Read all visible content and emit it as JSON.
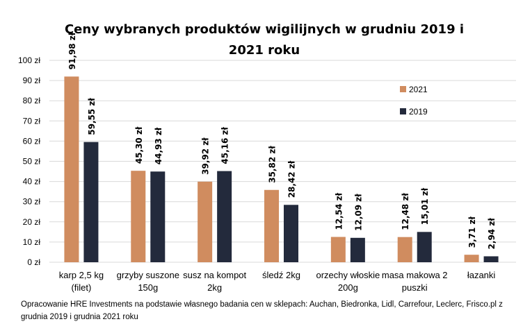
{
  "chart_data": {
    "type": "bar",
    "title_lines": [
      "Ceny wybranych produktów wigilijnych w grudniu 2019 i",
      "2021 roku"
    ],
    "categories": [
      [
        "karp 2,5 kg",
        "(filet)"
      ],
      [
        "grzyby suszone",
        "150g"
      ],
      [
        "susz na kompot",
        "2kg"
      ],
      [
        "śledź 2kg"
      ],
      [
        "orzechy włoskie",
        "200g"
      ],
      [
        "masa makowa 2",
        "puszki"
      ],
      [
        "łazanki"
      ]
    ],
    "series": [
      {
        "name": "2021",
        "color": "#D08C5F",
        "values": [
          91.98,
          45.3,
          39.92,
          35.82,
          12.54,
          12.48,
          3.71
        ],
        "labels": [
          "91,98 zł",
          "45,30 zł",
          "39,92 zł",
          "35,82 zł",
          "12,54 zł",
          "12,48 zł",
          "3,71 zł"
        ]
      },
      {
        "name": "2019",
        "color": "#232A3C",
        "values": [
          59.55,
          44.93,
          45.16,
          28.42,
          12.09,
          15.01,
          2.94
        ],
        "labels": [
          "59,55 zł",
          "44,93 zł",
          "45,16 zł",
          "28,42 zł",
          "12,09 zł",
          "15,01 zł",
          "2,94 zł"
        ]
      }
    ],
    "yticks": [
      "0 zł",
      "10 zł",
      "20 zł",
      "30 zł",
      "40 zł",
      "50 zł",
      "60 zł",
      "70 zł",
      "80 zł",
      "90 zł",
      "100 zł"
    ],
    "ylim": [
      0,
      100
    ],
    "grid": true,
    "legend_position": "top-right",
    "xlabel": "",
    "ylabel": ""
  },
  "note": "Opracowanie HRE Investments na podstawie własnego badania cen w sklepach: Auchan, Biedronka, Lidl, Carrefour, Leclerc, Frisco.pl z grudnia 2019 i grudnia 2021 roku"
}
